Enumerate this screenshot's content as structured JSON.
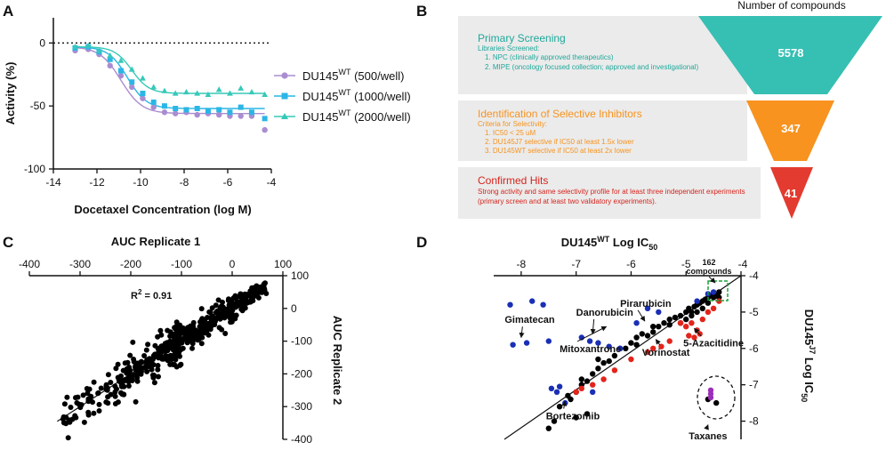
{
  "panels": {
    "A": "A",
    "B": "B",
    "C": "C",
    "D": "D"
  },
  "chart_data": [
    {
      "id": "A",
      "type": "scatter",
      "xlabel": "Docetaxel Concentration (log M)",
      "ylabel": "Activity (%)",
      "xlim": [
        -14,
        -4
      ],
      "ylim": [
        -100,
        20
      ],
      "xticks": [
        -14,
        -12,
        -10,
        -8,
        -6,
        -4
      ],
      "xtick_labels": [
        "-14",
        "-12",
        "-10",
        "-8",
        "-6",
        "-4"
      ],
      "yticks": [
        0,
        -50,
        -100
      ],
      "ytick_labels": [
        "0",
        "-50",
        "-100"
      ],
      "reference_line": 0,
      "series": [
        {
          "name": "DU145WT (500/well)",
          "label_main": "DU145",
          "label_sup": "WT",
          "label_tail": " (500/well)",
          "color": "#a98dd0",
          "marker": "circle",
          "x": [
            -13,
            -12.4,
            -11.9,
            -11.4,
            -10.9,
            -10.4,
            -9.9,
            -9.4,
            -8.9,
            -8.4,
            -7.9,
            -7.4,
            -6.9,
            -6.4,
            -5.9,
            -5.4,
            -4.9,
            -4.3
          ],
          "y": [
            -6,
            -5,
            -9,
            -18,
            -26,
            -35,
            -44,
            -51,
            -55,
            -56,
            -55,
            -57,
            -56,
            -57,
            -58,
            -58,
            -58,
            -69
          ],
          "fit": {
            "top": -3,
            "bottom": -56,
            "ec50": -10.9,
            "hill": 0.9
          }
        },
        {
          "name": "DU145WT (1000/well)",
          "label_main": "DU145",
          "label_sup": "WT",
          "label_tail": " (1000/well)",
          "color": "#2ab6e6",
          "marker": "square",
          "x": [
            -13,
            -12.4,
            -11.9,
            -11.4,
            -10.9,
            -10.4,
            -9.9,
            -9.4,
            -8.9,
            -8.4,
            -7.9,
            -7.4,
            -6.9,
            -6.4,
            -5.9,
            -5.4,
            -4.9,
            -4.3
          ],
          "y": [
            -4,
            -3,
            -7,
            -13,
            -22,
            -31,
            -40,
            -47,
            -50,
            -52,
            -53,
            -52,
            -54,
            -53,
            -55,
            -51,
            -55,
            -60
          ],
          "fit": {
            "top": -3,
            "bottom": -52,
            "ec50": -10.6,
            "hill": 1.0
          }
        },
        {
          "name": "DU145WT (2000/well)",
          "label_main": "DU145",
          "label_sup": "WT",
          "label_tail": " (2000/well)",
          "color": "#36c9b9",
          "marker": "triangle",
          "x": [
            -13,
            -12.4,
            -11.9,
            -11.4,
            -10.9,
            -10.4,
            -9.9,
            -9.4,
            -8.9,
            -8.4,
            -7.9,
            -7.4,
            -6.9,
            -6.4,
            -5.9,
            -5.4,
            -4.9,
            -4.3
          ],
          "y": [
            -3,
            -2,
            -6,
            -10,
            -14,
            -21,
            -28,
            -35,
            -38,
            -40,
            -39,
            -40,
            -41,
            -37,
            -40,
            -36,
            -39,
            -41
          ],
          "fit": {
            "top": -3,
            "bottom": -40,
            "ec50": -10.4,
            "hill": 1.1
          }
        }
      ]
    },
    {
      "id": "B",
      "type": "funnel",
      "title": "Number of compounds",
      "stages": [
        {
          "title": "Primary Screening",
          "subtitle": "Libraries Screened:",
          "items": [
            "1.  NPC (clinically approved therapeutics)",
            "2.  MIPE (oncology focused collection; approved and investigational)"
          ],
          "value": 5578,
          "value_label": "5578",
          "color": "#36bfb3",
          "text_color": "#1fa89b"
        },
        {
          "title": "Identification of Selective Inhibitors",
          "subtitle": "Criteria for Selectivity:",
          "items": [
            "1.  IC50 < 25 uM",
            "2.  DU145J7 selective if IC50 at least 1.5x lower",
            "3.  DU145WT selective if IC50 at least 2x lower"
          ],
          "value": 347,
          "value_label": "347",
          "color": "#f7931e",
          "text_color": "#f7931e"
        },
        {
          "title": "Confirmed Hits",
          "subtitle": "",
          "items": [
            "Strong activity and same selectivity profile for at least three independent experiments",
            " (primary screen and at least two validatory experiments)."
          ],
          "value": 41,
          "value_label": "41",
          "color": "#e33b2f",
          "text_color": "#d6241c"
        }
      ]
    },
    {
      "id": "C",
      "type": "scatter",
      "title": "AUC Replicate 1",
      "ylabel": "AUC Replicate 2",
      "xlim": [
        -400,
        100
      ],
      "ylim": [
        -400,
        100
      ],
      "xticks": [
        -400,
        -300,
        -200,
        -100,
        0,
        100
      ],
      "xtick_labels": [
        "-400",
        "-300",
        "-200",
        "-100",
        "0",
        "100"
      ],
      "yticks": [
        100,
        0,
        -100,
        -200,
        -300,
        -400
      ],
      "ytick_labels": [
        "100",
        "0",
        "-100",
        "-200",
        "-300",
        "-400"
      ],
      "annotation_main": "R",
      "annotation_sup": "2",
      "annotation_tail": " = 0.91",
      "fit_line": {
        "slope": 1.0,
        "intercept": 0
      },
      "points_desc": "dense cloud along the identity line from -330 to 70",
      "color": "#000000"
    },
    {
      "id": "D",
      "type": "scatter",
      "title": "DU145WT Log IC50",
      "ylabel": "DU145J7 Log IC50",
      "xlim": [
        -8.5,
        -4
      ],
      "ylim": [
        -8.5,
        -4
      ],
      "xticks": [
        -8,
        -7,
        -6,
        -5,
        -4
      ],
      "xtick_labels": [
        "-8",
        "-7",
        "-6",
        "-5",
        "-4"
      ],
      "yticks": [
        -4,
        -5,
        -6,
        -7,
        -8
      ],
      "ytick_labels": [
        "-4",
        "-5",
        "-6",
        "-7",
        "-8"
      ],
      "box_label_1": "162",
      "box_label_2": "compounds",
      "groups": [
        {
          "name": "black",
          "color": "#000000",
          "points": [
            [
              -7.3,
              -7.6
            ],
            [
              -7.1,
              -7.4
            ],
            [
              -7.15,
              -7.3
            ],
            [
              -7.0,
              -7.2
            ],
            [
              -6.9,
              -7.0
            ],
            [
              -6.8,
              -6.9
            ],
            [
              -6.9,
              -6.85
            ],
            [
              -6.7,
              -6.7
            ],
            [
              -6.6,
              -6.55
            ],
            [
              -6.5,
              -6.4
            ],
            [
              -6.6,
              -6.3
            ],
            [
              -6.4,
              -6.35
            ],
            [
              -6.3,
              -6.2
            ],
            [
              -6.2,
              -6.0
            ],
            [
              -6.1,
              -6.0
            ],
            [
              -6.0,
              -5.85
            ],
            [
              -5.9,
              -5.9
            ],
            [
              -5.9,
              -5.7
            ],
            [
              -5.8,
              -5.6
            ],
            [
              -5.7,
              -5.65
            ],
            [
              -5.6,
              -5.55
            ],
            [
              -5.6,
              -5.4
            ],
            [
              -5.5,
              -5.4
            ],
            [
              -5.4,
              -5.3
            ],
            [
              -5.3,
              -5.35
            ],
            [
              -5.3,
              -5.2
            ],
            [
              -5.2,
              -5.15
            ],
            [
              -5.1,
              -5.1
            ],
            [
              -5.0,
              -5.0
            ],
            [
              -4.95,
              -4.9
            ],
            [
              -4.9,
              -5.0
            ],
            [
              -4.85,
              -4.85
            ],
            [
              -4.8,
              -4.8
            ],
            [
              -4.75,
              -4.75
            ],
            [
              -4.7,
              -4.7
            ],
            [
              -4.7,
              -4.9
            ],
            [
              -4.65,
              -4.65
            ],
            [
              -4.6,
              -4.6
            ],
            [
              -4.6,
              -4.75
            ],
            [
              -4.55,
              -4.55
            ],
            [
              -4.5,
              -4.6
            ],
            [
              -4.5,
              -4.5
            ],
            [
              -4.45,
              -4.55
            ],
            [
              -4.4,
              -4.45
            ],
            [
              -4.4,
              -4.6
            ],
            [
              -5.0,
              -5.2
            ],
            [
              -5.1,
              -5.3
            ],
            [
              -4.9,
              -5.1
            ],
            [
              -4.8,
              -5.0
            ],
            [
              -4.6,
              -7.4
            ],
            [
              -4.45,
              -7.5
            ],
            [
              -7.5,
              -8.2
            ],
            [
              -7.4,
              -8.0
            ],
            [
              -7.0,
              -7.9
            ],
            [
              -6.8,
              -7.8
            ]
          ]
        },
        {
          "name": "blue",
          "color": "#1a2fb5",
          "points": [
            [
              -8.2,
              -4.8
            ],
            [
              -7.8,
              -4.7
            ],
            [
              -7.6,
              -4.8
            ],
            [
              -8.15,
              -5.9
            ],
            [
              -7.9,
              -5.85
            ],
            [
              -7.5,
              -5.8
            ],
            [
              -6.9,
              -5.7
            ],
            [
              -6.75,
              -5.8
            ],
            [
              -6.6,
              -5.85
            ],
            [
              -6.4,
              -5.95
            ],
            [
              -6.2,
              -6.0
            ],
            [
              -5.7,
              -4.9
            ],
            [
              -5.5,
              -5.0
            ],
            [
              -4.8,
              -4.7
            ],
            [
              -4.6,
              -4.5
            ],
            [
              -7.45,
              -7.1
            ],
            [
              -7.35,
              -7.2
            ],
            [
              -7.3,
              -7.05
            ],
            [
              -6.7,
              -7.2
            ],
            [
              -7.2,
              -7.5
            ],
            [
              -5.9,
              -5.3
            ],
            [
              -4.5,
              -4.45
            ]
          ]
        },
        {
          "name": "red",
          "color": "#e3241b",
          "points": [
            [
              -5.1,
              -5.3
            ],
            [
              -5.0,
              -5.4
            ],
            [
              -4.9,
              -5.3
            ],
            [
              -4.8,
              -5.5
            ],
            [
              -4.85,
              -5.7
            ],
            [
              -4.75,
              -5.6
            ],
            [
              -4.95,
              -5.65
            ],
            [
              -5.3,
              -5.8
            ],
            [
              -5.45,
              -5.95
            ],
            [
              -5.6,
              -6.0
            ],
            [
              -5.7,
              -6.1
            ],
            [
              -6.0,
              -6.3
            ],
            [
              -6.3,
              -6.6
            ],
            [
              -6.5,
              -6.85
            ],
            [
              -6.7,
              -7.0
            ],
            [
              -6.9,
              -7.1
            ],
            [
              -7.0,
              -7.2
            ],
            [
              -4.7,
              -5.2
            ],
            [
              -4.6,
              -5.0
            ],
            [
              -4.5,
              -4.9
            ],
            [
              -4.4,
              -4.7
            ]
          ]
        },
        {
          "name": "purple",
          "color": "#9b2fb8",
          "points": [
            [
              -4.55,
              -7.15
            ],
            [
              -4.55,
              -7.25
            ],
            [
              -4.55,
              -7.35
            ]
          ]
        }
      ],
      "annotations": [
        {
          "text": "Gimatecan",
          "tx": -8.3,
          "ty": -5.3,
          "ax": -8.0,
          "ay": -5.7,
          "align": "start"
        },
        {
          "text": "Danorubicin",
          "tx": -7.0,
          "ty": -5.1,
          "ax": -6.7,
          "ay": -5.6,
          "align": "start"
        },
        {
          "text": "Pirarubicin",
          "tx": -6.2,
          "ty": -4.85,
          "ax": -5.75,
          "ay": -5.25,
          "align": "start"
        },
        {
          "text": "Mitoxantrone",
          "tx": -7.3,
          "ty": -6.1,
          "ax": -6.45,
          "ay": -5.4,
          "align": "start"
        },
        {
          "text": "Vorinostat",
          "tx": -5.8,
          "ty": -6.2,
          "ax": -5.55,
          "ay": -5.75,
          "align": "start"
        },
        {
          "text": "5-Azacitidine",
          "tx": -5.05,
          "ty": -5.95,
          "ax": -4.85,
          "ay": -5.45,
          "align": "start"
        },
        {
          "text": "Bortezomib",
          "tx": -7.55,
          "ty": -7.95,
          "ax": -7.2,
          "ay": -7.45,
          "align": "start"
        },
        {
          "text": "Taxanes",
          "tx": -4.95,
          "ty": -8.5,
          "ax": -4.6,
          "ay": -8.1,
          "align": "start"
        }
      ]
    }
  ]
}
